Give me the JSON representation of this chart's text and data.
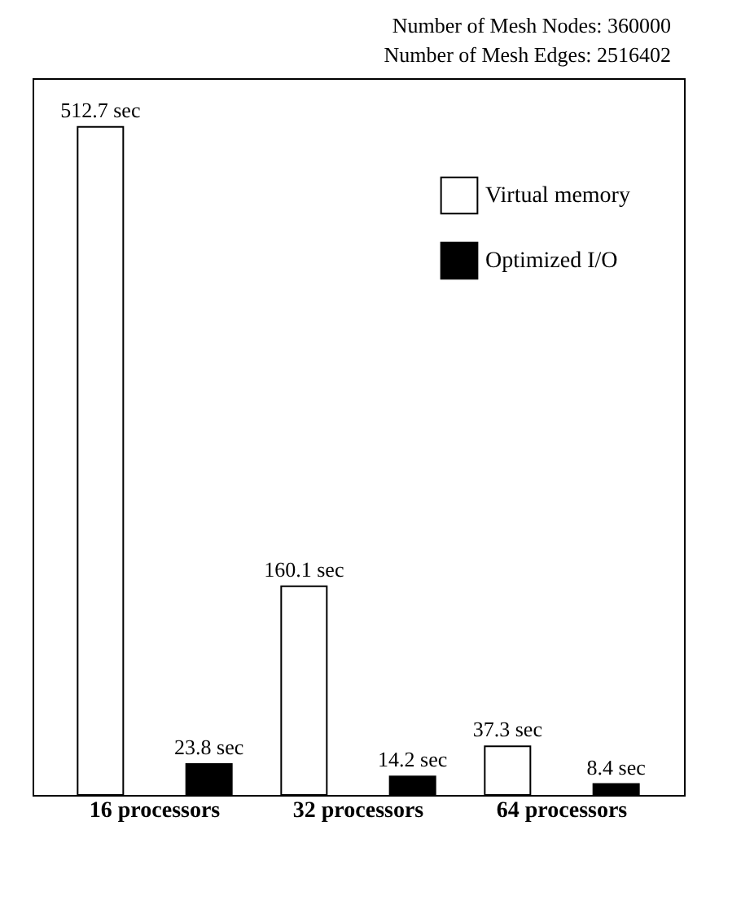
{
  "chart_data": {
    "type": "bar",
    "categories": [
      "16 processors",
      "32 processors",
      "64 processors"
    ],
    "series": [
      {
        "name": "Virtual memory",
        "color": "#ffffff",
        "values": [
          512.7,
          160.1,
          37.3
        ],
        "value_labels": [
          "512.7 sec",
          "160.1 sec",
          "37.3 sec"
        ]
      },
      {
        "name": "Optimized I/O",
        "color": "#000000",
        "values": [
          23.8,
          14.2,
          8.4
        ],
        "value_labels": [
          "23.8 sec",
          "14.2 sec",
          "8.4 sec"
        ]
      }
    ],
    "annotations": [
      "Number of Mesh Nodes: 360000",
      "Number of Mesh Edges: 2516402"
    ],
    "legend": "top right",
    "grid": false
  }
}
